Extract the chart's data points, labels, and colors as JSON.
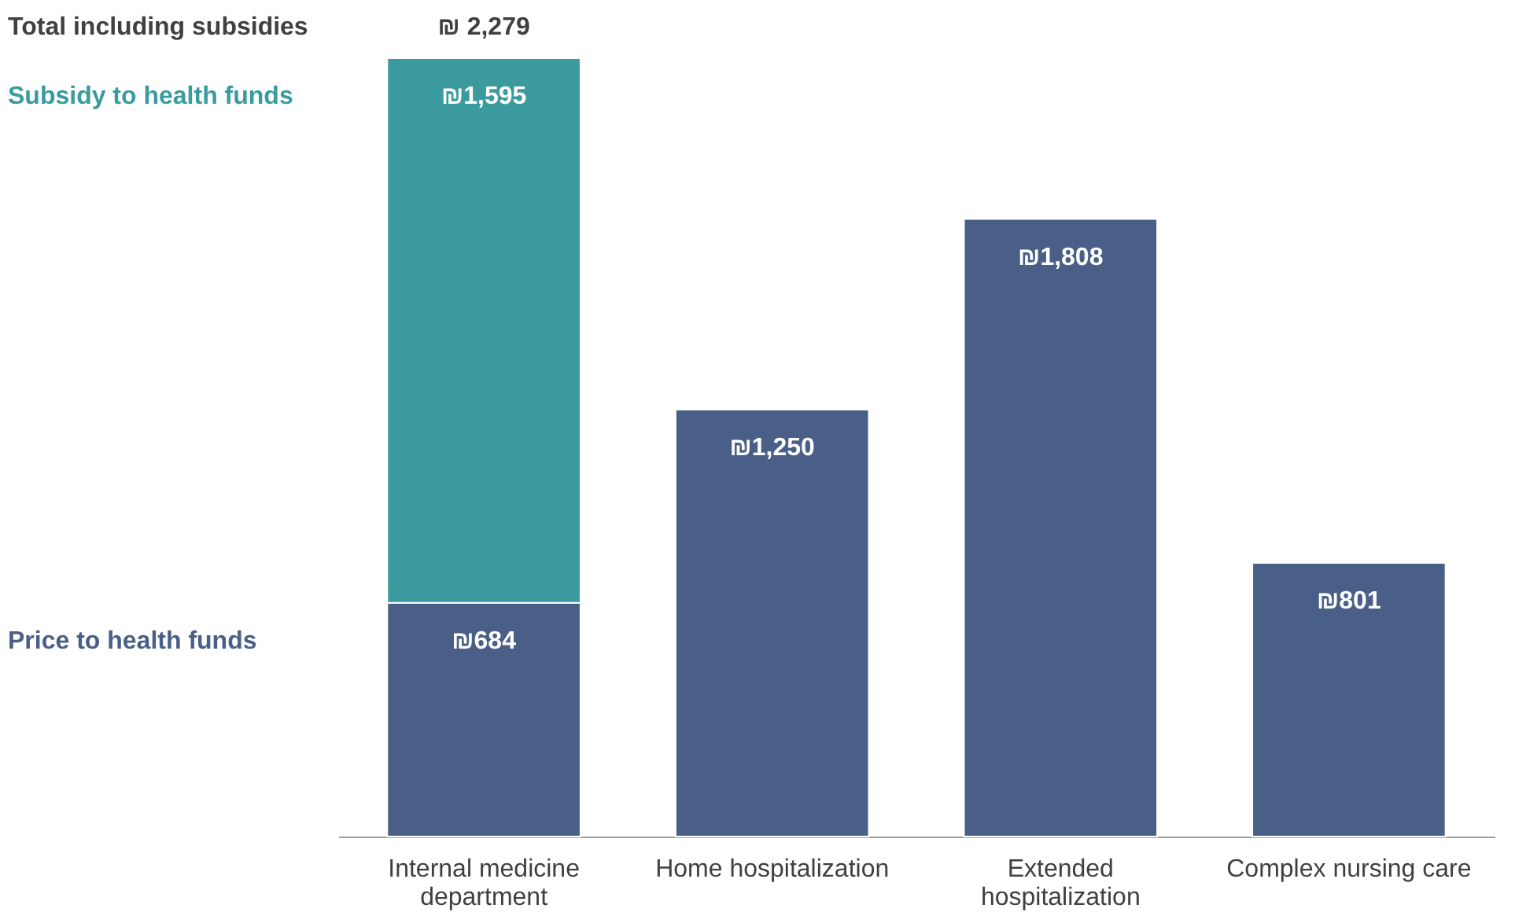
{
  "chart_data": {
    "type": "bar",
    "stacked": true,
    "categories": [
      "Internal medicine department",
      "Home hospitalization",
      "Extended hospitalization",
      "Complex nursing care"
    ],
    "series": [
      {
        "name": "Price to health funds",
        "color": "#4a5f87",
        "values": [
          684,
          1250,
          1808,
          801
        ],
        "value_labels": [
          "₪684",
          "₪1,250",
          "₪1,808",
          "₪801"
        ]
      },
      {
        "name": "Subsidy to health funds",
        "color": "#3a9a9e",
        "values": [
          1595,
          null,
          null,
          null
        ],
        "value_labels": [
          "₪1,595",
          null,
          null,
          null
        ]
      }
    ],
    "totals": [
      "₪ 2,279",
      null,
      null,
      null
    ],
    "annotations": [
      "Total including subsidies"
    ],
    "legend": "left",
    "grid": false
  }
}
